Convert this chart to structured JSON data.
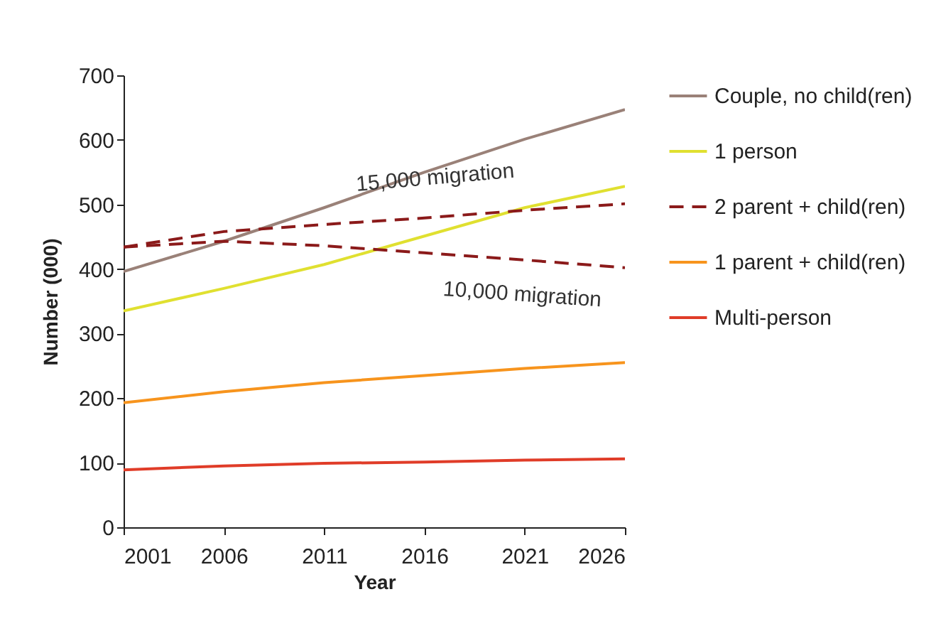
{
  "chart_data": {
    "type": "line",
    "xlabel": "Year",
    "ylabel": "Number (000)",
    "x": [
      2001,
      2006,
      2011,
      2016,
      2021,
      2026
    ],
    "xlim": [
      2001,
      2026
    ],
    "xticks": [
      2001,
      2006,
      2011,
      2016,
      2021,
      2026
    ],
    "ylim": [
      0,
      700
    ],
    "yticks": [
      0,
      100,
      200,
      300,
      400,
      500,
      600,
      700
    ],
    "grid": false,
    "legend": "right",
    "marker": "none",
    "series": [
      {
        "name": "Couple, no child(ren)",
        "color": "#9a8178",
        "values": [
          396,
          443,
          495,
          550,
          601,
          647
        ]
      },
      {
        "name": "1 person",
        "color": "#e0e030",
        "values": [
          335,
          370,
          407,
          451,
          495,
          528
        ]
      },
      {
        "name": "2 parent + child(ren)",
        "color": "#8b1a1a",
        "line_style": "dashed",
        "values": [
          434,
          443,
          436,
          425,
          414,
          402
        ]
      },
      {
        "color": "#8b1a1a",
        "line_style": "dashed",
        "values": [
          434,
          458,
          469,
          479,
          491,
          501
        ]
      },
      {
        "name": "1 parent + child(ren)",
        "color": "#f7941d",
        "values": [
          193,
          210,
          224,
          235,
          246,
          255
        ]
      },
      {
        "name": "Multi-person",
        "color": "#e03c28",
        "values": [
          89,
          95,
          99,
          101,
          104,
          106
        ]
      }
    ],
    "annotations": [
      {
        "text": "15,000 migration",
        "x": 2016,
        "y": 479
      },
      {
        "text": "10,000 migration",
        "x": 2021,
        "y": 414
      }
    ]
  }
}
